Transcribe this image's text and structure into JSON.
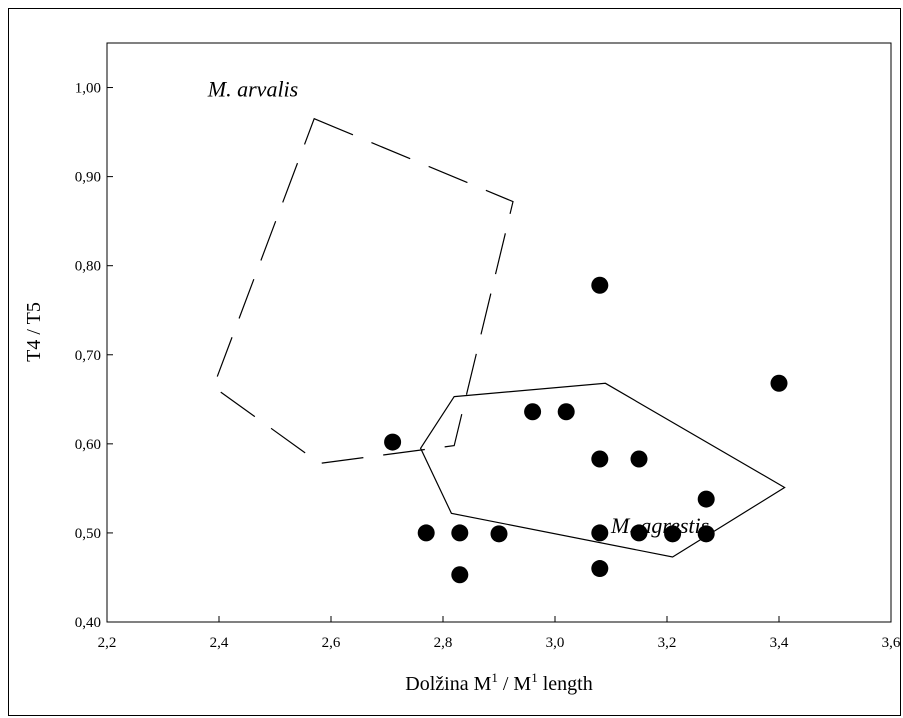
{
  "chart_data": {
    "type": "scatter",
    "title": "",
    "xlabel": "Dolžina M¹ / M¹ length",
    "xlabel_parts": {
      "base1": "Dolžina M",
      "sup1": "1",
      "middle": " / M",
      "sup2": "1",
      "end": " length"
    },
    "ylabel": "T4 / T5",
    "xlim": [
      2.2,
      3.6
    ],
    "ylim": [
      0.4,
      1.05
    ],
    "x_ticks": [
      "2,2",
      "2,4",
      "2,6",
      "2,8",
      "3,0",
      "3,2",
      "3,4",
      "3,6"
    ],
    "x_tick_values": [
      2.2,
      2.4,
      2.6,
      2.8,
      3.0,
      3.2,
      3.4,
      3.6
    ],
    "y_ticks": [
      "0,40",
      "0,50",
      "0,60",
      "0,70",
      "0,80",
      "0,90",
      "1,00"
    ],
    "y_tick_values": [
      0.4,
      0.5,
      0.6,
      0.7,
      0.8,
      0.9,
      1.0
    ],
    "grid": false,
    "points": [
      {
        "x": 2.71,
        "y": 0.602
      },
      {
        "x": 2.77,
        "y": 0.5
      },
      {
        "x": 2.83,
        "y": 0.5
      },
      {
        "x": 2.83,
        "y": 0.453
      },
      {
        "x": 2.9,
        "y": 0.499
      },
      {
        "x": 2.96,
        "y": 0.636
      },
      {
        "x": 3.02,
        "y": 0.636
      },
      {
        "x": 3.08,
        "y": 0.778
      },
      {
        "x": 3.08,
        "y": 0.583
      },
      {
        "x": 3.08,
        "y": 0.5
      },
      {
        "x": 3.08,
        "y": 0.46
      },
      {
        "x": 3.15,
        "y": 0.583
      },
      {
        "x": 3.15,
        "y": 0.5
      },
      {
        "x": 3.21,
        "y": 0.499
      },
      {
        "x": 3.27,
        "y": 0.538
      },
      {
        "x": 3.27,
        "y": 0.499
      },
      {
        "x": 3.4,
        "y": 0.668
      }
    ],
    "polygons": [
      {
        "name": "M. arvalis",
        "style": "dashed",
        "vertices": [
          [
            2.57,
            0.965
          ],
          [
            2.925,
            0.872
          ],
          [
            2.82,
            0.598
          ],
          [
            2.58,
            0.578
          ],
          [
            2.39,
            0.664
          ]
        ]
      },
      {
        "name": "M. agrestis",
        "style": "solid",
        "vertices": [
          [
            2.82,
            0.653
          ],
          [
            3.09,
            0.668
          ],
          [
            3.41,
            0.551
          ],
          [
            3.21,
            0.473
          ],
          [
            2.815,
            0.522
          ],
          [
            2.76,
            0.595
          ]
        ]
      }
    ],
    "annotations": [
      {
        "text": "M. arvalis",
        "x": 2.38,
        "y": 0.99
      },
      {
        "text": "M. agrestis",
        "x": 3.1,
        "y": 0.5
      }
    ],
    "marker": {
      "shape": "circle",
      "color": "#000000"
    }
  }
}
